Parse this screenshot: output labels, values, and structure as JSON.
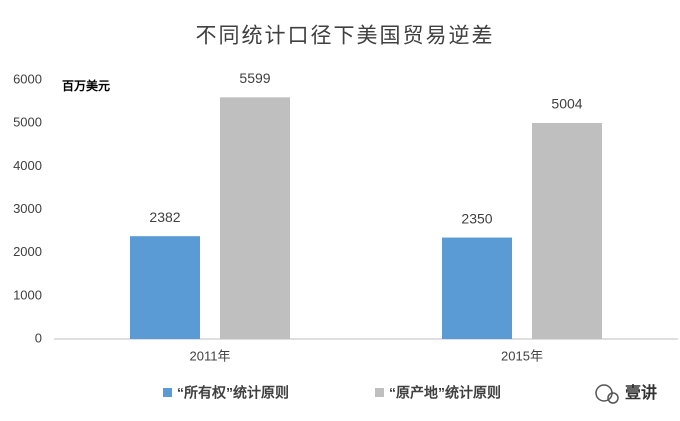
{
  "chart_data": {
    "type": "bar",
    "title": "不同统计口径下美国贸易逆差",
    "unit_label": "百万美元",
    "categories": [
      "2011年",
      "2015年"
    ],
    "series": [
      {
        "name": "“所有权”统计原则",
        "color": "#5b9bd5",
        "values": [
          2382,
          2350
        ]
      },
      {
        "name": "“原产地”统计原则",
        "color": "#bfbfbf",
        "values": [
          5599,
          5004
        ]
      }
    ],
    "ylim": [
      0,
      6000
    ],
    "yticks": [
      0,
      1000,
      2000,
      3000,
      4000,
      5000,
      6000
    ],
    "grid": false,
    "legend": "bottom"
  },
  "watermark": "壹讲"
}
